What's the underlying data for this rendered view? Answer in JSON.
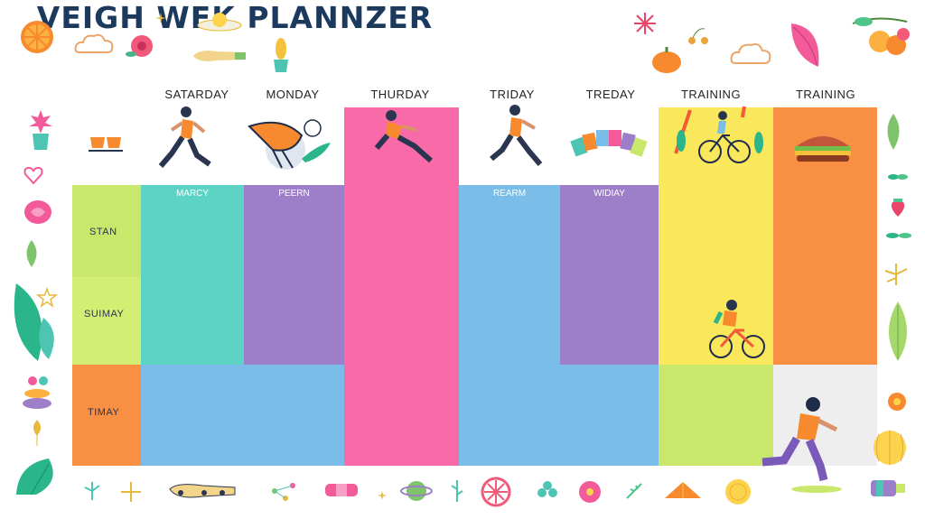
{
  "title": "VEIGH WEK PLANNZER",
  "columns": [
    "SATARDAY",
    "MONDAY",
    "THURDAY",
    "TRIDAY",
    "TREDAY",
    "TRAINING",
    "TRAINING"
  ],
  "row_labels": [
    "STAN",
    "SUIMAY",
    "TIMAY"
  ],
  "cell_labels": [
    "MARCY",
    "PEERN",
    "REARM",
    "WIDIAY"
  ],
  "colors": {
    "lime": "#c9e86b",
    "teal": "#5dd3c5",
    "purple": "#9d7ec9",
    "pink": "#f96aa8",
    "blue": "#79bde8",
    "yellow": "#fae85c",
    "orange": "#f98f43",
    "light_gray": "#eeeeee",
    "orange_label": "#f98f43"
  },
  "icons": [
    "orange-slice-icon",
    "cloud-icon",
    "flower-icon",
    "leaf-icon",
    "heart-icon",
    "runner-icon",
    "cyclist-icon",
    "burger-icon",
    "shoe-icon",
    "sparkle-icon"
  ]
}
